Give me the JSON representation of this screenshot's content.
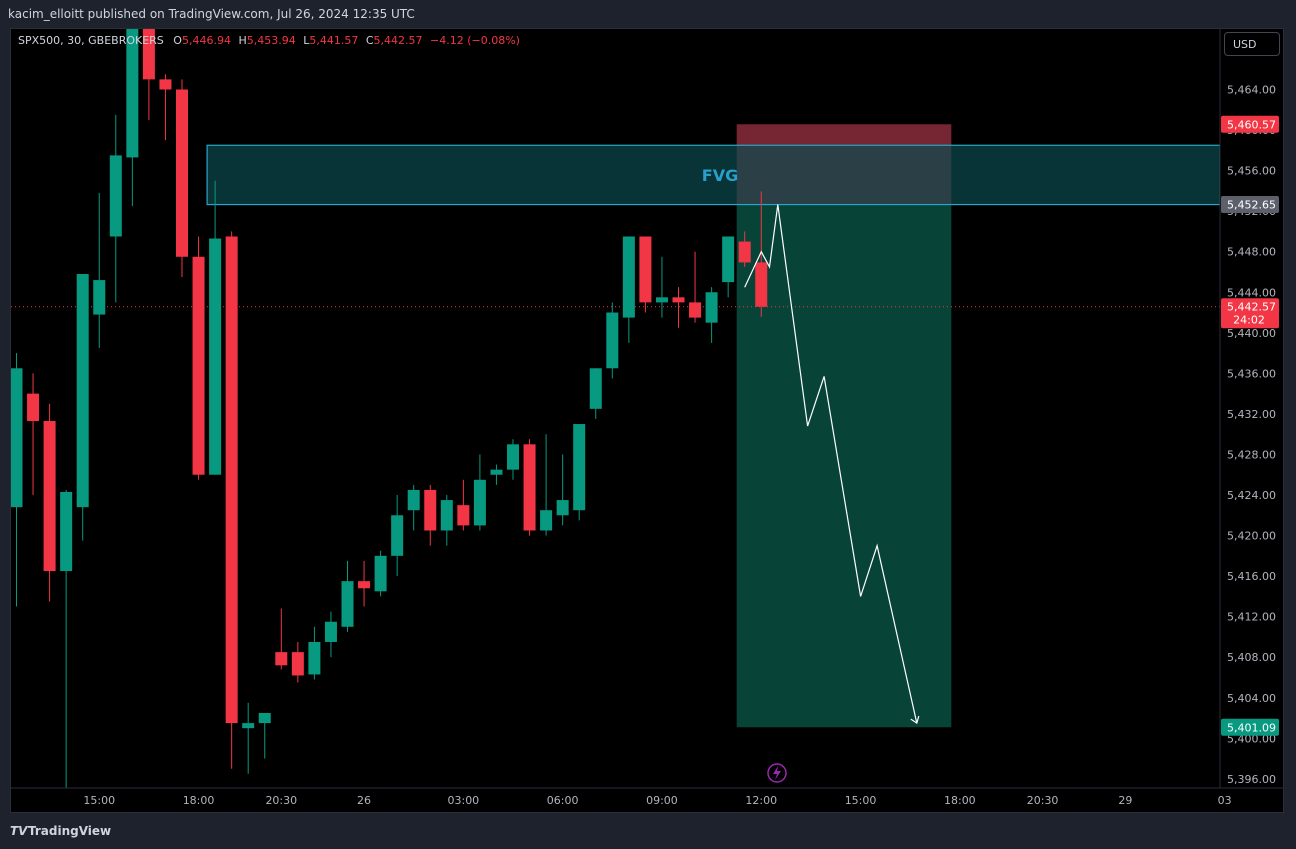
{
  "header": {
    "publisher_text": "kacim_elloitt published on TradingView.com, Jul 26, 2024 12:35 UTC"
  },
  "legend": {
    "symbol": "SPX500, 30, GBEBROKERS",
    "o_label": "O",
    "o_value": "5,446.94",
    "h_label": "H",
    "h_value": "5,453.94",
    "l_label": "L",
    "l_value": "5,441.57",
    "c_label": "C",
    "c_value": "5,442.57",
    "change": "−4.12 (−0.08%)"
  },
  "currency_button": "USD",
  "footer": {
    "brand": "TradingView"
  },
  "colors": {
    "up": "#089981",
    "down": "#f23645",
    "fvg_fill": "#0b4a4f",
    "fvg_border": "#26a6c8",
    "fvg_text": "#2a9fc9",
    "target_fill": "#0b5a4b",
    "stop_fill": "#8b2c3c",
    "arrow": "#ffffff",
    "axis_text": "#b2b5be",
    "last_price_line": "#f23645"
  },
  "chart_data": {
    "type": "candlestick",
    "symbol": "SPX500",
    "interval": "30",
    "ylim": [
      5394,
      5468
    ],
    "y_ticks": [
      "5,464.00",
      "5,460.00",
      "5,456.00",
      "5,452.00",
      "5,448.00",
      "5,444.00",
      "5,440.00",
      "5,436.00",
      "5,432.00",
      "5,428.00",
      "5,424.00",
      "5,420.00",
      "5,416.00",
      "5,412.00",
      "5,408.00",
      "5,404.00",
      "5,400.00",
      "5,396.00"
    ],
    "x_ticks": [
      {
        "label": "15:00",
        "bar": 5
      },
      {
        "label": "18:00",
        "bar": 11
      },
      {
        "label": "20:30",
        "bar": 16
      },
      {
        "label": "26",
        "bar": 21
      },
      {
        "label": "03:00",
        "bar": 27
      },
      {
        "label": "06:00",
        "bar": 33
      },
      {
        "label": "09:00",
        "bar": 39
      },
      {
        "label": "12:00",
        "bar": 45
      },
      {
        "label": "15:00",
        "bar": 51
      },
      {
        "label": "18:00",
        "bar": 57
      },
      {
        "label": "20:30",
        "bar": 62
      },
      {
        "label": "29",
        "bar": 67
      },
      {
        "label": "03",
        "bar": 73
      }
    ],
    "candles": [
      {
        "o": 5422.8,
        "h": 5438.0,
        "l": 5413.0,
        "c": 5436.5
      },
      {
        "o": 5434.0,
        "h": 5436.0,
        "l": 5424.0,
        "c": 5431.3
      },
      {
        "o": 5431.3,
        "h": 5433.0,
        "l": 5413.5,
        "c": 5416.5
      },
      {
        "o": 5416.5,
        "h": 5424.5,
        "l": 5395.0,
        "c": 5424.3
      },
      {
        "o": 5422.8,
        "h": 5445.5,
        "l": 5419.5,
        "c": 5445.8
      },
      {
        "o": 5441.8,
        "h": 5453.8,
        "l": 5438.5,
        "c": 5445.2
      },
      {
        "o": 5449.5,
        "h": 5461.5,
        "l": 5443.0,
        "c": 5457.5
      },
      {
        "o": 5457.3,
        "h": 5476.0,
        "l": 5452.5,
        "c": 5472.0
      },
      {
        "o": 5472.0,
        "h": 5473.0,
        "l": 5461.0,
        "c": 5465.0
      },
      {
        "o": 5465.0,
        "h": 5465.5,
        "l": 5459.0,
        "c": 5464.0
      },
      {
        "o": 5464.0,
        "h": 5465.0,
        "l": 5445.5,
        "c": 5447.5
      },
      {
        "o": 5447.5,
        "h": 5449.5,
        "l": 5425.5,
        "c": 5426.0
      },
      {
        "o": 5426.0,
        "h": 5455.0,
        "l": 5426.0,
        "c": 5449.3
      },
      {
        "o": 5449.5,
        "h": 5450.0,
        "l": 5397.0,
        "c": 5401.5
      },
      {
        "o": 5401.0,
        "h": 5403.5,
        "l": 5396.5,
        "c": 5401.5
      },
      {
        "o": 5401.5,
        "h": 5402.5,
        "l": 5398.0,
        "c": 5402.5
      },
      {
        "o": 5408.5,
        "h": 5412.8,
        "l": 5406.8,
        "c": 5407.2
      },
      {
        "o": 5408.5,
        "h": 5409.5,
        "l": 5405.5,
        "c": 5406.2
      },
      {
        "o": 5406.3,
        "h": 5411.0,
        "l": 5405.8,
        "c": 5409.5
      },
      {
        "o": 5409.5,
        "h": 5412.5,
        "l": 5408.0,
        "c": 5411.5
      },
      {
        "o": 5411.0,
        "h": 5417.5,
        "l": 5410.5,
        "c": 5415.5
      },
      {
        "o": 5415.5,
        "h": 5417.5,
        "l": 5413.0,
        "c": 5414.8
      },
      {
        "o": 5414.5,
        "h": 5418.5,
        "l": 5414.0,
        "c": 5418.0
      },
      {
        "o": 5418.0,
        "h": 5424.0,
        "l": 5416.0,
        "c": 5422.0
      },
      {
        "o": 5422.5,
        "h": 5425.0,
        "l": 5420.5,
        "c": 5424.5
      },
      {
        "o": 5424.5,
        "h": 5425.0,
        "l": 5419.0,
        "c": 5420.5
      },
      {
        "o": 5420.5,
        "h": 5424.0,
        "l": 5419.0,
        "c": 5423.5
      },
      {
        "o": 5423.0,
        "h": 5425.5,
        "l": 5420.5,
        "c": 5421.0
      },
      {
        "o": 5421.0,
        "h": 5428.0,
        "l": 5420.5,
        "c": 5425.5
      },
      {
        "o": 5426.0,
        "h": 5427.0,
        "l": 5425.0,
        "c": 5426.5
      },
      {
        "o": 5426.5,
        "h": 5429.5,
        "l": 5425.5,
        "c": 5429.0
      },
      {
        "o": 5429.0,
        "h": 5429.5,
        "l": 5420.0,
        "c": 5420.5
      },
      {
        "o": 5420.5,
        "h": 5430.0,
        "l": 5420.0,
        "c": 5422.5
      },
      {
        "o": 5422.0,
        "h": 5428.0,
        "l": 5421.0,
        "c": 5423.5
      },
      {
        "o": 5422.5,
        "h": 5431.0,
        "l": 5421.5,
        "c": 5431.0
      },
      {
        "o": 5432.5,
        "h": 5436.5,
        "l": 5431.5,
        "c": 5436.5
      },
      {
        "o": 5436.5,
        "h": 5443.0,
        "l": 5435.5,
        "c": 5442.0
      },
      {
        "o": 5441.5,
        "h": 5449.5,
        "l": 5439.0,
        "c": 5449.5
      },
      {
        "o": 5449.5,
        "h": 5449.5,
        "l": 5442.0,
        "c": 5443.0
      },
      {
        "o": 5443.0,
        "h": 5447.5,
        "l": 5441.5,
        "c": 5443.5
      },
      {
        "o": 5443.5,
        "h": 5444.5,
        "l": 5440.5,
        "c": 5443.0
      },
      {
        "o": 5443.0,
        "h": 5448.0,
        "l": 5441.0,
        "c": 5441.5
      },
      {
        "o": 5441.0,
        "h": 5444.5,
        "l": 5439.0,
        "c": 5444.0
      },
      {
        "o": 5445.0,
        "h": 5449.5,
        "l": 5443.5,
        "c": 5449.5
      },
      {
        "o": 5449.0,
        "h": 5450.0,
        "l": 5446.5,
        "c": 5446.94
      },
      {
        "o": 5446.94,
        "h": 5453.94,
        "l": 5441.57,
        "c": 5442.57
      }
    ],
    "annotations": {
      "fvg": {
        "label": "FVG",
        "top": 5458.5,
        "bottom": 5452.65,
        "from_bar": 12,
        "to_bar": "end"
      },
      "position": {
        "entry": 5452.65,
        "stop": 5460.57,
        "target": 5401.09,
        "from_bar": 44,
        "to_bar": 56
      },
      "projection_path": [
        {
          "bar": 44,
          "price": 5444.5
        },
        {
          "bar": 45,
          "price": 5448.0
        },
        {
          "bar": 45.5,
          "price": 5446.5
        },
        {
          "bar": 46,
          "price": 5452.65
        },
        {
          "bar": 47.8,
          "price": 5430.8
        },
        {
          "bar": 48.8,
          "price": 5435.7
        },
        {
          "bar": 51,
          "price": 5414.0
        },
        {
          "bar": 52,
          "price": 5419.0
        },
        {
          "bar": 54.4,
          "price": 5401.5
        }
      ]
    },
    "price_labels": [
      {
        "text": "5,460.57",
        "price": 5460.57,
        "color": "#f23645"
      },
      {
        "text": "5,452.65",
        "price": 5452.65,
        "color": "#5d606b"
      },
      {
        "text": "5,442.57",
        "price": 5442.57,
        "color": "#f23645",
        "sub": "24:02"
      },
      {
        "text": "5,401.09",
        "price": 5401.09,
        "color": "#089981"
      }
    ]
  }
}
